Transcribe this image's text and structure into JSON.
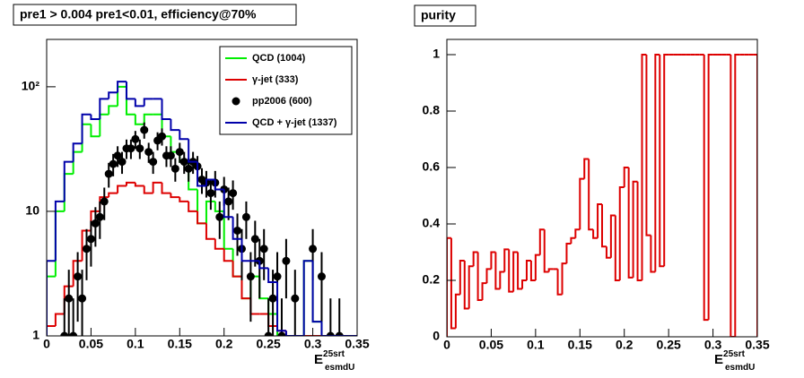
{
  "chart_data": [
    {
      "type": "histogram",
      "title": "pre1 > 0.004  pre1<0.01, efficiency@70%",
      "log": true,
      "xlabel": {
        "base": "E",
        "sup": "25srt",
        "sub": "esmdU"
      },
      "xlim": [
        0,
        0.35
      ],
      "xticks": [
        0,
        0.05,
        0.1,
        0.15,
        0.2,
        0.25,
        0.3,
        0.35
      ],
      "ylim": [
        1,
        240
      ],
      "yticks": [
        1,
        10,
        {
          "value": 100,
          "label": "10²"
        }
      ],
      "legend": "upper right",
      "bins": [
        0,
        0.01,
        0.02,
        0.03,
        0.04,
        0.05,
        0.06,
        0.07,
        0.08,
        0.09,
        0.1,
        0.11,
        0.12,
        0.13,
        0.14,
        0.15,
        0.16,
        0.17,
        0.18,
        0.19,
        0.2,
        0.21,
        0.22,
        0.23,
        0.24,
        0.25,
        0.26,
        0.27,
        0.28,
        0.29,
        0.3,
        0.31,
        0.32,
        0.33,
        0.34,
        0.35
      ],
      "series": [
        {
          "name": "QCD (1004)",
          "color": "#00ee00",
          "values": [
            3,
            10,
            20,
            30,
            50,
            40,
            60,
            70,
            100,
            60,
            50,
            60,
            60,
            40,
            30,
            25,
            15,
            8,
            12,
            10,
            5,
            3,
            2,
            3,
            2,
            1.5,
            null,
            null,
            null,
            4,
            1.3,
            null,
            null,
            null,
            null
          ]
        },
        {
          "name": "γ-jet (333)",
          "color": "#dd0000",
          "values": [
            1.2,
            1.5,
            2.5,
            4,
            7,
            10,
            13,
            14,
            16,
            17,
            16,
            14,
            17,
            14,
            13,
            12,
            10,
            8,
            6,
            5,
            4,
            3,
            2,
            1.5,
            1.5,
            1.2,
            1.1,
            null,
            null,
            null,
            null,
            null,
            null,
            null,
            null
          ]
        },
        {
          "name": "pp2006 (600)",
          "color": "#000000",
          "style": "points",
          "x": [
            0.02,
            0.025,
            0.03,
            0.035,
            0.04,
            0.045,
            0.05,
            0.055,
            0.06,
            0.065,
            0.07,
            0.075,
            0.08,
            0.085,
            0.09,
            0.095,
            0.1,
            0.105,
            0.11,
            0.115,
            0.12,
            0.125,
            0.13,
            0.135,
            0.14,
            0.145,
            0.15,
            0.155,
            0.16,
            0.165,
            0.17,
            0.175,
            0.18,
            0.185,
            0.19,
            0.195,
            0.2,
            0.205,
            0.21,
            0.215,
            0.22,
            0.225,
            0.23,
            0.235,
            0.24,
            0.245,
            0.25,
            0.255,
            0.26,
            0.265,
            0.27,
            0.28,
            0.3,
            0.31,
            0.32,
            0.33
          ],
          "values": [
            1,
            2,
            1,
            3,
            2,
            5,
            6,
            8,
            9,
            12,
            20,
            24,
            28,
            25,
            32,
            32,
            38,
            32,
            45,
            30,
            25,
            37,
            40,
            28,
            28,
            22,
            30,
            25,
            22,
            25,
            23,
            18,
            17,
            14,
            17,
            9,
            15,
            12,
            14,
            7,
            5,
            9,
            3,
            6,
            4,
            5,
            1,
            2,
            3,
            1,
            4,
            2,
            5,
            3,
            1,
            1
          ],
          "errors": [
            1,
            1.4,
            1,
            1.7,
            1.4,
            2.2,
            2.4,
            2.8,
            3,
            3.5,
            4.5,
            4.9,
            5.3,
            5,
            5.7,
            5.7,
            6.2,
            5.7,
            6.7,
            5.5,
            5,
            6.1,
            6.3,
            5.3,
            5.3,
            4.7,
            5.5,
            5,
            4.7,
            5,
            4.8,
            4.2,
            4.1,
            3.7,
            4.1,
            3,
            3.9,
            3.5,
            3.7,
            2.6,
            2.2,
            3,
            1.7,
            2.4,
            2,
            2.2,
            1,
            1.4,
            1.7,
            1,
            2,
            1.4,
            2.2,
            1.7,
            1,
            1
          ]
        },
        {
          "name": "QCD + γ-jet (1337)",
          "color": "#0000aa",
          "values": [
            4,
            12,
            25,
            35,
            60,
            55,
            80,
            90,
            110,
            80,
            70,
            80,
            80,
            55,
            45,
            38,
            25,
            16,
            18,
            15,
            9,
            6,
            4,
            4,
            3.5,
            2.7,
            1.1,
            null,
            null,
            4,
            1.3,
            null,
            null,
            null,
            null
          ]
        }
      ]
    },
    {
      "type": "histogram",
      "title": "purity",
      "log": false,
      "xlabel": {
        "base": "E",
        "sup": "25srt",
        "sub": "esmdU"
      },
      "xlim": [
        0,
        0.35
      ],
      "xticks": [
        0,
        0.05,
        0.1,
        0.15,
        0.2,
        0.25,
        0.3,
        0.35
      ],
      "ylim": [
        0,
        1.054
      ],
      "yticks": [
        0,
        0.2,
        0.4,
        0.6,
        0.8,
        1
      ],
      "bins": [
        0,
        0.005,
        0.01,
        0.015,
        0.02,
        0.025,
        0.03,
        0.035,
        0.04,
        0.045,
        0.05,
        0.055,
        0.06,
        0.065,
        0.07,
        0.075,
        0.08,
        0.085,
        0.09,
        0.095,
        0.1,
        0.105,
        0.11,
        0.115,
        0.12,
        0.125,
        0.13,
        0.135,
        0.14,
        0.145,
        0.15,
        0.155,
        0.16,
        0.165,
        0.17,
        0.175,
        0.18,
        0.185,
        0.19,
        0.195,
        0.2,
        0.205,
        0.21,
        0.215,
        0.22,
        0.225,
        0.23,
        0.235,
        0.24,
        0.245,
        0.25,
        0.255,
        0.26,
        0.265,
        0.27,
        0.275,
        0.28,
        0.285,
        0.29,
        0.295,
        0.3,
        0.305,
        0.31,
        0.315,
        0.32,
        0.325,
        0.33,
        0.335,
        0.34,
        0.345,
        0.35
      ],
      "series": [
        {
          "color": "#dd0000",
          "values": [
            0.35,
            0.03,
            0.15,
            0.27,
            0.1,
            0.25,
            0.3,
            0.13,
            0.19,
            0.24,
            0.3,
            0.17,
            0.23,
            0.31,
            0.16,
            0.3,
            0.17,
            0.2,
            0.27,
            0.2,
            0.29,
            0.38,
            0.23,
            0.24,
            0.24,
            0.15,
            0.26,
            0.33,
            0.35,
            0.38,
            0.56,
            0.63,
            0.38,
            0.35,
            0.47,
            0.32,
            0.28,
            0.43,
            0.2,
            0.53,
            0.6,
            0.21,
            0.55,
            0.2,
            1,
            0.36,
            0.23,
            1,
            0.25,
            1,
            1,
            1,
            1,
            1,
            1,
            1,
            1,
            1,
            0.06,
            1,
            1,
            1,
            1,
            1,
            0,
            1,
            1,
            1,
            1,
            1
          ]
        }
      ]
    }
  ]
}
